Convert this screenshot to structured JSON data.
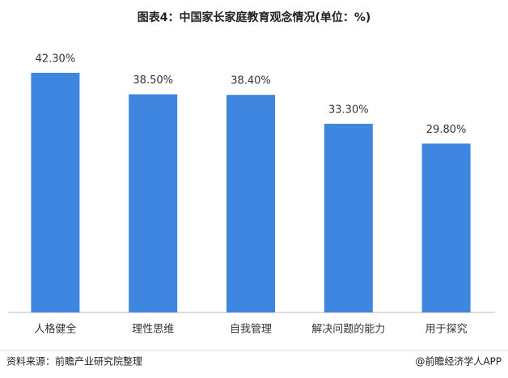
{
  "chart_data": {
    "type": "bar",
    "title": "图表4：中国家长家庭教育观念情况(单位：%)",
    "categories": [
      "人格健全",
      "理性思维",
      "自我管理",
      "解决问题的能力",
      "用于探究"
    ],
    "values": [
      42.3,
      38.5,
      38.4,
      33.3,
      29.8
    ],
    "value_labels": [
      "42.30%",
      "38.50%",
      "38.40%",
      "33.30%",
      "29.80%"
    ],
    "color": "#3f86e0",
    "source": "资料来源：前瞻产业研究院整理",
    "credit": "@前瞻经济学人APP"
  }
}
